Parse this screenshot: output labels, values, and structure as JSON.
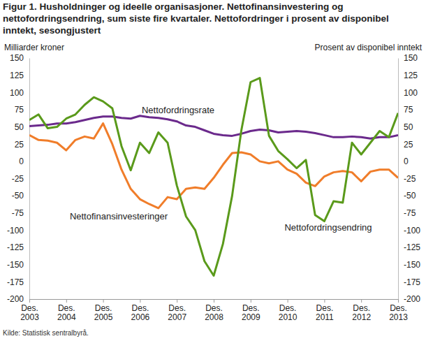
{
  "chart_data": {
    "type": "line",
    "title": "Figur 1. Husholdninger og ideelle organisasjoner. Nettofinansinvestering og nettofordringsendring, sum siste fire kvartaler. Nettofordringer i prosent av disponibel inntekt, sesongjustert",
    "y_label": "Milliarder kroner",
    "y2_label": "Prosent av disponibel inntekt",
    "source": "Kilde: Statistisk sentralbyrå.",
    "categories": [
      "Des. 2003",
      null,
      null,
      null,
      "Des. 2004",
      null,
      null,
      null,
      "Des. 2005",
      null,
      null,
      null,
      "Des. 2006",
      null,
      null,
      null,
      "Des. 2007",
      null,
      null,
      null,
      "Des. 2008",
      null,
      null,
      null,
      "Des. 2009",
      null,
      null,
      null,
      "Des. 2010",
      null,
      null,
      null,
      "Des. 2011",
      null,
      null,
      null,
      "Des. 2012",
      null,
      null,
      null,
      "Des. 2013"
    ],
    "ylim": [
      -200,
      150
    ],
    "yticks": [
      -200,
      -175,
      -150,
      -125,
      -100,
      -75,
      -50,
      -25,
      0,
      25,
      50,
      75,
      100,
      125,
      150
    ],
    "y2lim": [
      -200,
      150
    ],
    "y2ticks": [
      -200,
      -175,
      -150,
      -125,
      -100,
      -75,
      -50,
      -25,
      0,
      25,
      50,
      75,
      100,
      125,
      150
    ],
    "grid": false,
    "series": [
      {
        "name": "Nettofordringsrate",
        "color": "#6b2a8c",
        "axis": "y2",
        "values": [
          51,
          52,
          53,
          55,
          55,
          57,
          60,
          63,
          65,
          65,
          63,
          62,
          66,
          64,
          63,
          61,
          58,
          52,
          50,
          45,
          40,
          38,
          37,
          40,
          44,
          46,
          45,
          42,
          43,
          44,
          43,
          41,
          38,
          35,
          35,
          36,
          35,
          33,
          35,
          35,
          38
        ]
      },
      {
        "name": "Nettofinansinvesteringer",
        "color": "#f07d2a",
        "values": [
          38,
          31,
          30,
          27,
          16,
          31,
          36,
          33,
          55,
          25,
          -12,
          -40,
          -55,
          -62,
          -68,
          -52,
          -55,
          -40,
          -38,
          -40,
          -24,
          -5,
          12,
          13,
          10,
          0,
          -3,
          0,
          -12,
          -18,
          -31,
          -36,
          -22,
          -16,
          -14,
          -16,
          -29,
          -15,
          -12,
          -12,
          -24
        ]
      },
      {
        "name": "Nettofordringsendring",
        "color": "#5a9a1b",
        "values": [
          60,
          68,
          48,
          50,
          62,
          68,
          82,
          93,
          87,
          77,
          22,
          -13,
          27,
          12,
          42,
          27,
          -35,
          -80,
          -100,
          -145,
          -166,
          -120,
          -50,
          45,
          115,
          121,
          37,
          15,
          3,
          -10,
          2,
          -78,
          -87,
          -58,
          -60,
          27,
          10,
          27,
          44,
          35,
          70
        ]
      }
    ]
  }
}
